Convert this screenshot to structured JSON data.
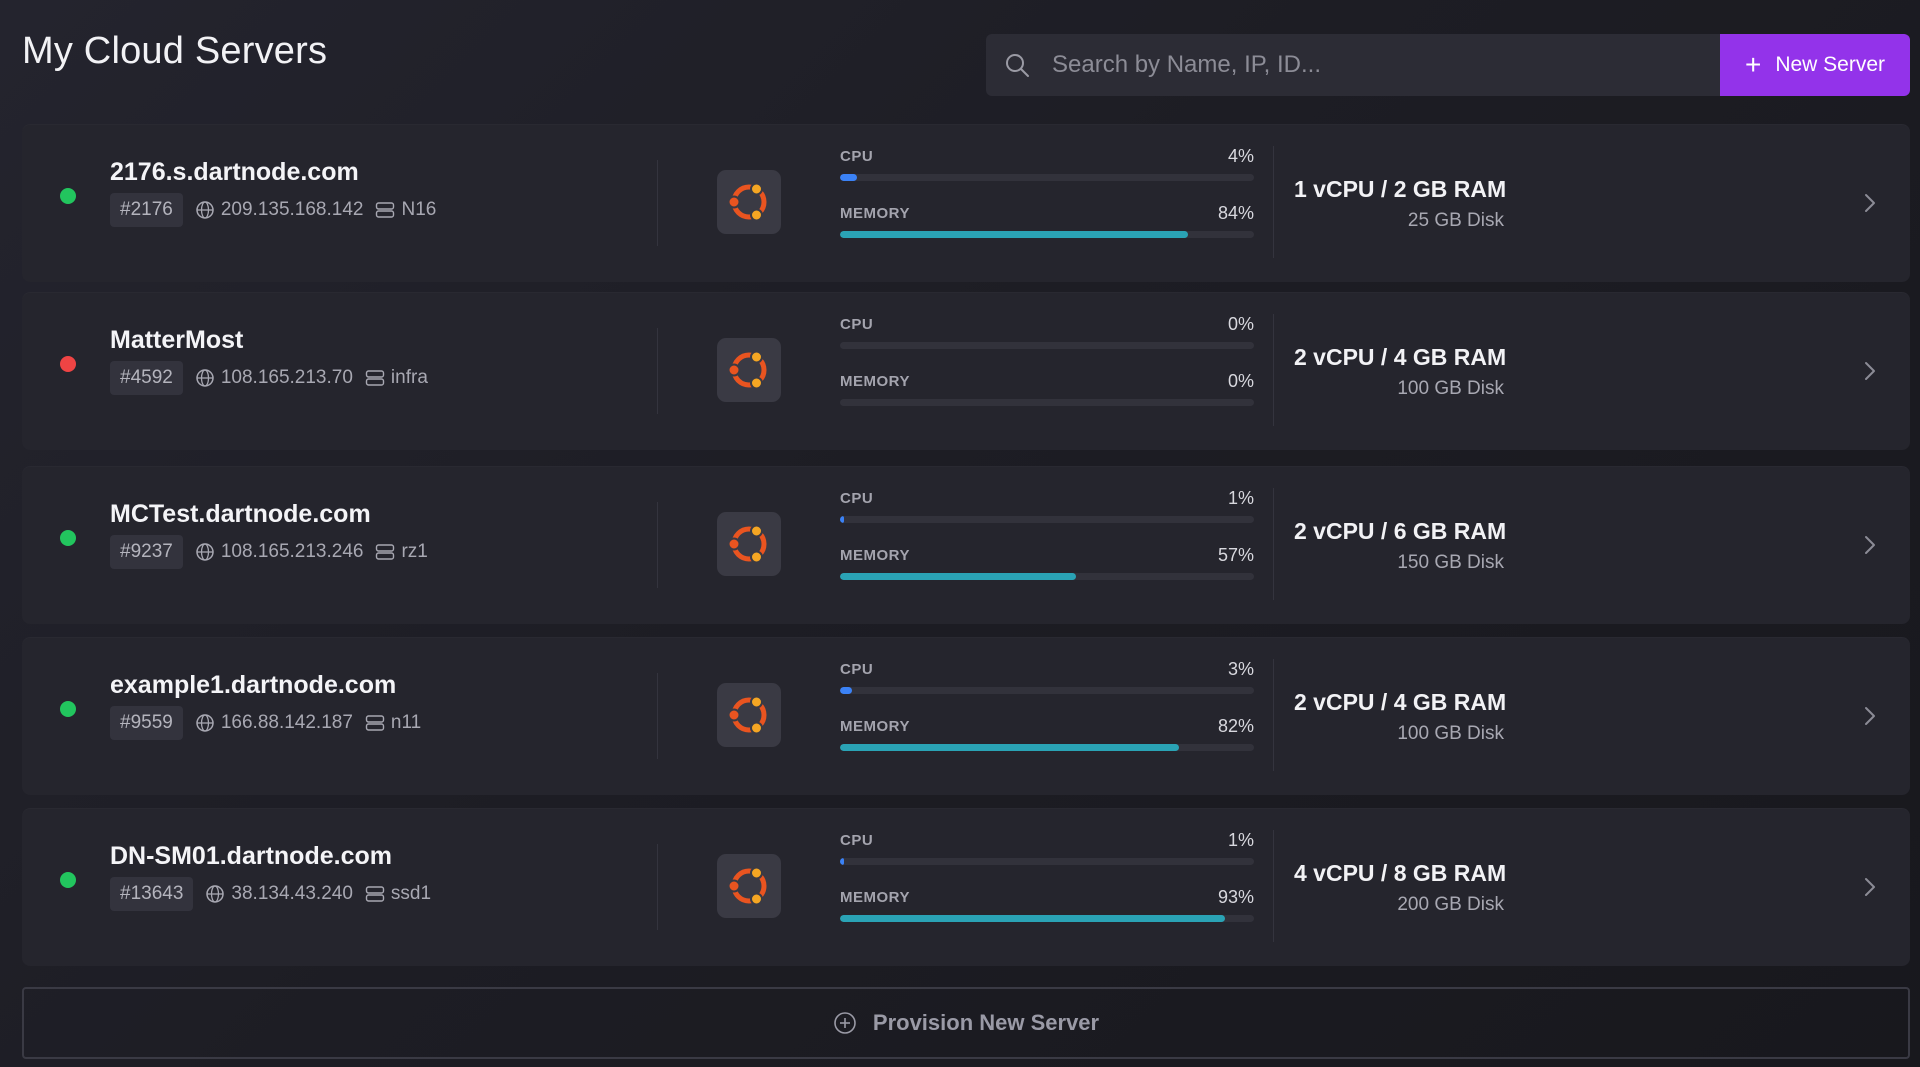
{
  "page": {
    "title": "My Cloud Servers"
  },
  "search": {
    "placeholder": "Search by Name, IP, ID..."
  },
  "toolbar": {
    "new_server_label": "New Server"
  },
  "colors": {
    "accent": "#9333ea",
    "status_online": "#22c55e",
    "status_offline": "#ef4444",
    "cpu_bar": "#3b82f6",
    "memory_bar": "#2aa3b5",
    "os_logo": "#e95420"
  },
  "metric_labels": {
    "cpu": "CPU",
    "memory": "MEMORY"
  },
  "servers": [
    {
      "name": "2176.s.dartnode.com",
      "id": "#2176",
      "ip": "209.135.168.142",
      "node": "N16",
      "status": "online",
      "os_icon": "ubuntu-logo-icon",
      "cpu": "4%",
      "cpu_pct": 4,
      "memory": "84%",
      "memory_pct": 84,
      "plan": "1 vCPU / 2 GB RAM",
      "disk": "25 GB Disk"
    },
    {
      "name": "MatterMost",
      "id": "#4592",
      "ip": "108.165.213.70",
      "node": "infra",
      "status": "offline",
      "os_icon": "ubuntu-logo-icon",
      "cpu": "0%",
      "cpu_pct": 0,
      "memory": "0%",
      "memory_pct": 0,
      "plan": "2 vCPU / 4 GB RAM",
      "disk": "100 GB Disk"
    },
    {
      "name": "MCTest.dartnode.com",
      "id": "#9237",
      "ip": "108.165.213.246",
      "node": "rz1",
      "status": "online",
      "os_icon": "ubuntu-logo-icon",
      "cpu": "1%",
      "cpu_pct": 1,
      "memory": "57%",
      "memory_pct": 57,
      "plan": "2 vCPU / 6 GB RAM",
      "disk": "150 GB Disk"
    },
    {
      "name": "example1.dartnode.com",
      "id": "#9559",
      "ip": "166.88.142.187",
      "node": "n11",
      "status": "online",
      "os_icon": "ubuntu-logo-icon",
      "cpu": "3%",
      "cpu_pct": 3,
      "memory": "82%",
      "memory_pct": 82,
      "plan": "2 vCPU / 4 GB RAM",
      "disk": "100 GB Disk"
    },
    {
      "name": "DN-SM01.dartnode.com",
      "id": "#13643",
      "ip": "38.134.43.240",
      "node": "ssd1",
      "status": "online",
      "os_icon": "ubuntu-logo-icon",
      "cpu": "1%",
      "cpu_pct": 1,
      "memory": "93%",
      "memory_pct": 93,
      "plan": "4 vCPU / 8 GB RAM",
      "disk": "200 GB Disk"
    }
  ],
  "footer": {
    "provision_label": "Provision New Server"
  }
}
